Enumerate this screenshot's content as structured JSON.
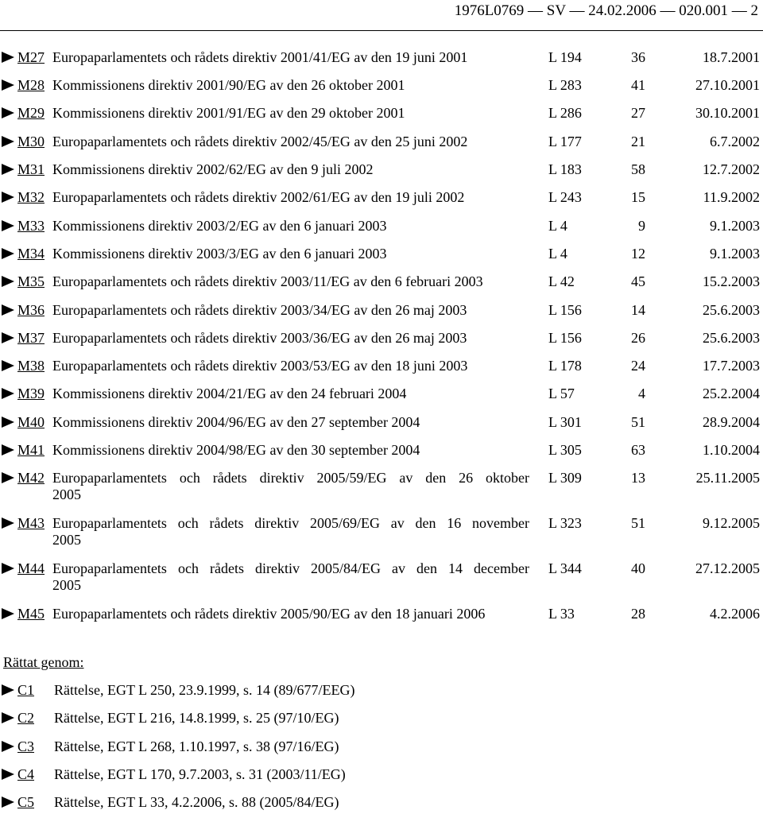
{
  "header": {
    "text": "1976L0769 — SV — 24.02.2006 — 020.001 — 2"
  },
  "amendments": [
    {
      "code": "M27",
      "desc": "Europaparlamentets och rådets direktiv 2001/41/EG av den 19 juni 2001",
      "oj": "L 194",
      "page": "36",
      "date": "18.7.2001"
    },
    {
      "code": "M28",
      "desc": "Kommissionens direktiv 2001/90/EG av den 26 oktober 2001",
      "oj": "L 283",
      "page": "41",
      "date": "27.10.2001"
    },
    {
      "code": "M29",
      "desc": "Kommissionens direktiv 2001/91/EG av den 29 oktober 2001",
      "oj": "L 286",
      "page": "27",
      "date": "30.10.2001"
    },
    {
      "code": "M30",
      "desc": "Europaparlamentets och rådets direktiv 2002/45/EG av den 25 juni 2002",
      "oj": "L 177",
      "page": "21",
      "date": "6.7.2002"
    },
    {
      "code": "M31",
      "desc": "Kommissionens direktiv 2002/62/EG av den 9 juli 2002",
      "oj": "L 183",
      "page": "58",
      "date": "12.7.2002"
    },
    {
      "code": "M32",
      "desc": "Europaparlamentets och rådets direktiv 2002/61/EG av den 19 juli 2002",
      "oj": "L 243",
      "page": "15",
      "date": "11.9.2002"
    },
    {
      "code": "M33",
      "desc": "Kommissionens direktiv 2003/2/EG av den 6 januari 2003",
      "oj": "L 4",
      "page": "9",
      "date": "9.1.2003"
    },
    {
      "code": "M34",
      "desc": "Kommissionens direktiv 2003/3/EG av den 6 januari 2003",
      "oj": "L 4",
      "page": "12",
      "date": "9.1.2003"
    },
    {
      "code": "M35",
      "desc": "Europaparlamentets och rådets direktiv 2003/11/EG av den 6 februari 2003",
      "oj": "L 42",
      "page": "45",
      "date": "15.2.2003"
    },
    {
      "code": "M36",
      "desc": "Europaparlamentets och rådets direktiv 2003/34/EG av den 26 maj 2003",
      "oj": "L 156",
      "page": "14",
      "date": "25.6.2003"
    },
    {
      "code": "M37",
      "desc": "Europaparlamentets och rådets direktiv 2003/36/EG av den 26 maj 2003",
      "oj": "L 156",
      "page": "26",
      "date": "25.6.2003"
    },
    {
      "code": "M38",
      "desc": "Europaparlamentets och rådets direktiv 2003/53/EG av den 18 juni 2003",
      "oj": "L 178",
      "page": "24",
      "date": "17.7.2003"
    },
    {
      "code": "M39",
      "desc": "Kommissionens direktiv 2004/21/EG av den 24 februari 2004",
      "oj": "L 57",
      "page": "4",
      "date": "25.2.2004"
    },
    {
      "code": "M40",
      "desc": "Kommissionens direktiv 2004/96/EG av den 27 september 2004",
      "oj": "L 301",
      "page": "51",
      "date": "28.9.2004"
    },
    {
      "code": "M41",
      "desc": "Kommissionens direktiv 2004/98/EG av den 30 september 2004",
      "oj": "L 305",
      "page": "63",
      "date": "1.10.2004"
    },
    {
      "code": "M42",
      "desc": "Europaparlamentets och rådets direktiv 2005/59/EG av den 26 oktober",
      "desc2": "2005",
      "oj": "L 309",
      "page": "13",
      "date": "25.11.2005"
    },
    {
      "code": "M43",
      "desc": "Europaparlamentets och rådets direktiv 2005/69/EG av den 16 november",
      "desc2": "2005",
      "oj": "L 323",
      "page": "51",
      "date": "9.12.2005"
    },
    {
      "code": "M44",
      "desc": "Europaparlamentets och rådets direktiv 2005/84/EG av den 14 december",
      "desc2": "2005",
      "oj": "L 344",
      "page": "40",
      "date": "27.12.2005"
    },
    {
      "code": "M45",
      "desc": "Europaparlamentets och rådets direktiv 2005/90/EG av den 18 januari 2006",
      "oj": "L 33",
      "page": "28",
      "date": "4.2.2006"
    }
  ],
  "corrections_label": "Rättat genom:",
  "corrections": [
    {
      "code": "C1",
      "text": "Rättelse, EGT L 250, 23.9.1999, s. 14 (89/677/EEG)"
    },
    {
      "code": "C2",
      "text": "Rättelse, EGT L 216, 14.8.1999, s. 25 (97/10/EG)"
    },
    {
      "code": "C3",
      "text": "Rättelse, EGT L 268, 1.10.1997, s. 38 (97/16/EG)"
    },
    {
      "code": "C4",
      "text": "Rättelse, EGT L 170, 9.7.2003, s. 31 (2003/11/EG)"
    },
    {
      "code": "C5",
      "text": "Rättelse, EGT L 33, 4.2.2006, s. 88 (2005/84/EG)"
    }
  ],
  "colors": {
    "text": "#000000",
    "background": "#ffffff"
  },
  "icons": {
    "marker": "right-pointing-triangle-icon"
  }
}
